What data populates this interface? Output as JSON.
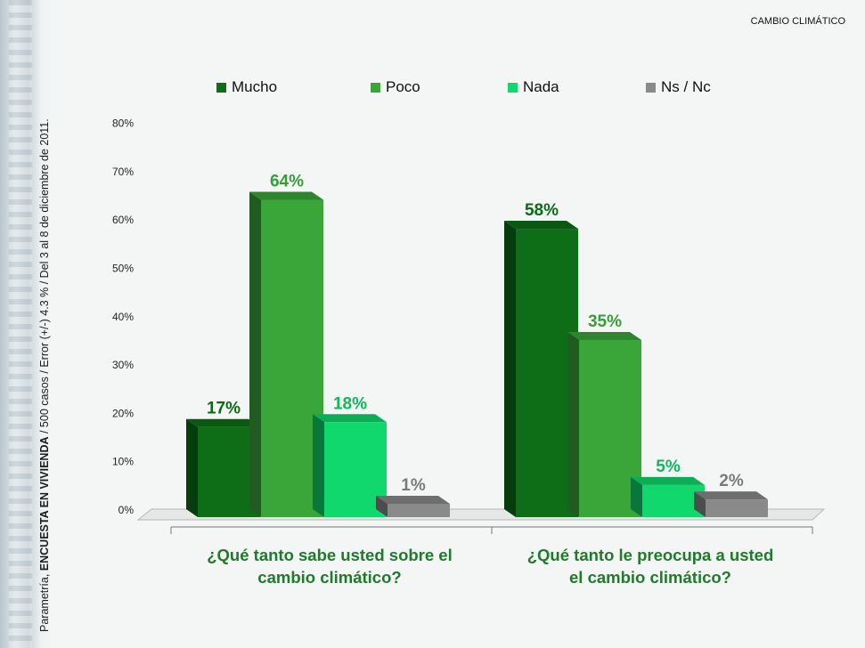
{
  "section_title": "CAMBIO CLIMÁTICO",
  "footnote": {
    "prefix": "Parametría, ",
    "bold": "ENCUESTA EN VIVIENDA",
    "rest": " / 500 casos / Error (+/-) 4.3 % / Del 3 al 8 de diciembre de 2011."
  },
  "colors": {
    "mucho": "#0d6e17",
    "poco": "#3aa63a",
    "nada": "#10d86c",
    "nsnc": "#8a8a8a"
  },
  "chart_data": {
    "type": "bar",
    "y_ticks": [
      "0%",
      "10%",
      "20%",
      "30%",
      "40%",
      "50%",
      "60%",
      "70%",
      "80%"
    ],
    "ylim": [
      0,
      80
    ],
    "legend_position": "top",
    "grid": false,
    "categories": [
      "¿Qué tanto sabe usted sobre el cambio climático?",
      "¿Qué tanto le preocupa a usted el cambio climático?"
    ],
    "series": [
      {
        "name": "Mucho",
        "color_key": "mucho",
        "values": [
          17,
          58
        ],
        "labels": [
          "17%",
          "58%"
        ]
      },
      {
        "name": "Poco",
        "color_key": "poco",
        "values": [
          64,
          35
        ],
        "labels": [
          "64%",
          "35%"
        ]
      },
      {
        "name": "Nada",
        "color_key": "nada",
        "values": [
          18,
          5
        ],
        "labels": [
          "18%",
          "5%"
        ]
      },
      {
        "name": "Ns / Nc",
        "color_key": "nsnc",
        "values": [
          1,
          2
        ],
        "labels": [
          "1%",
          "2%"
        ]
      }
    ]
  },
  "question_labels": [
    {
      "line1": "¿Qué tanto sabe usted sobre el",
      "line2": "cambio climático?"
    },
    {
      "line1": "¿Qué tanto le preocupa a usted",
      "line2": "el cambio climático?"
    }
  ]
}
